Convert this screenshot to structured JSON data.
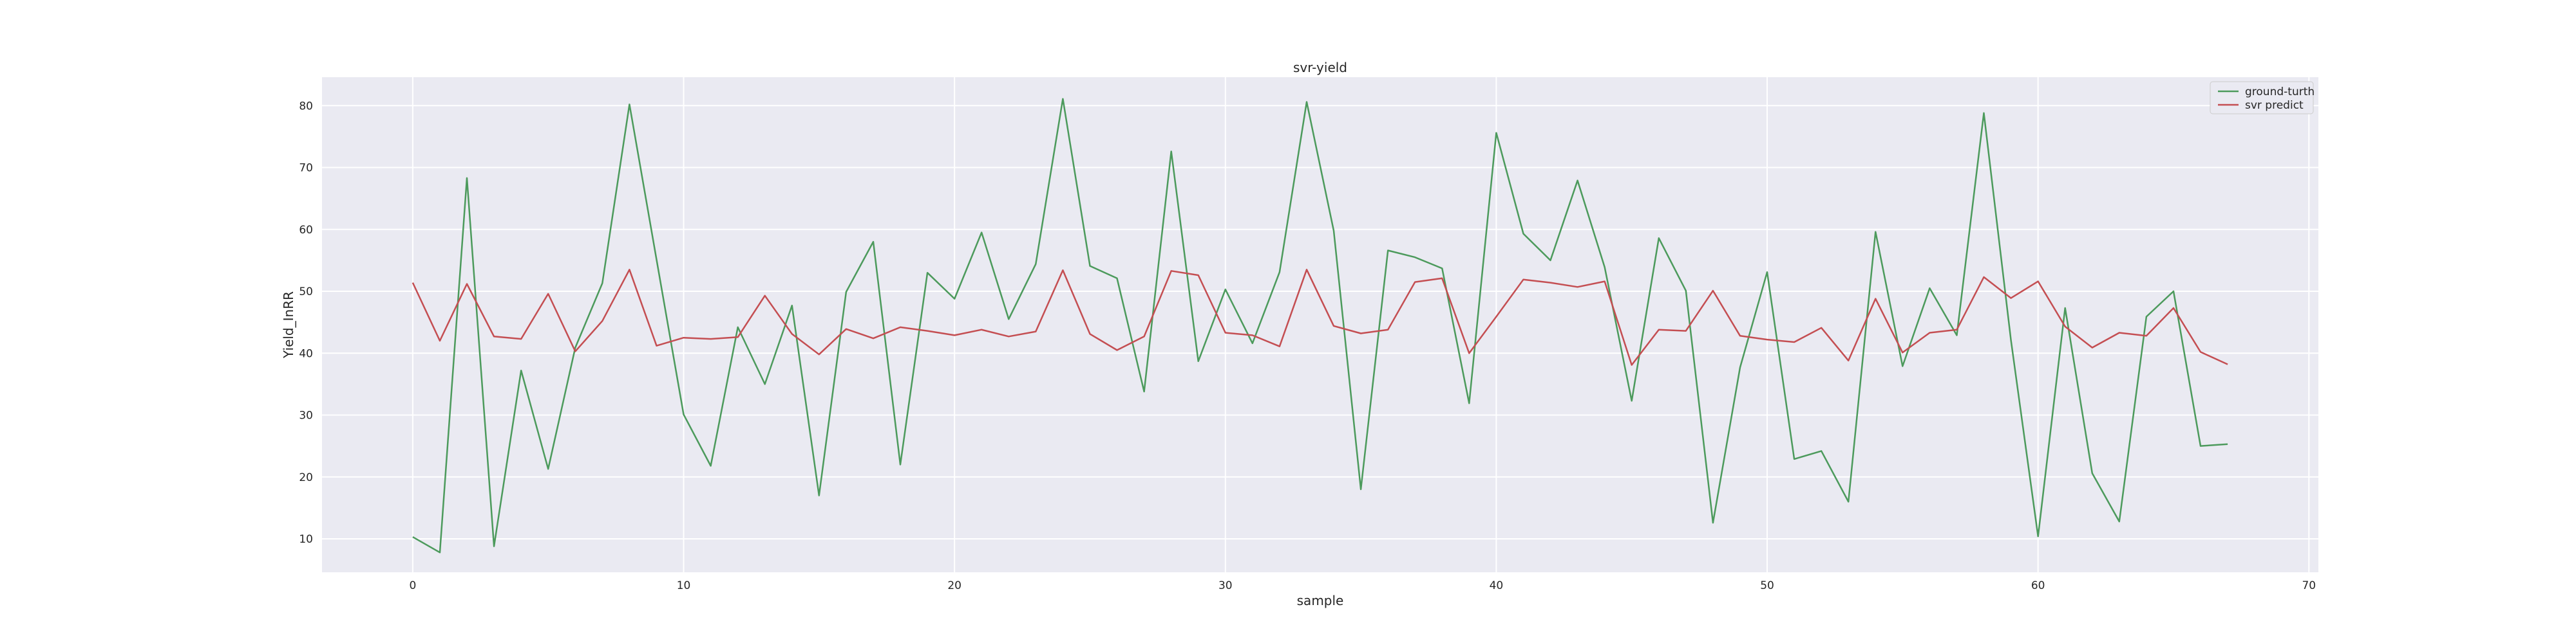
{
  "chart_data": {
    "type": "line",
    "title": "svr-yield",
    "xlabel": "sample",
    "ylabel": "Yield_InRR",
    "xlim": [
      -3.35,
      70.35
    ],
    "ylim": [
      4.6,
      84.6
    ],
    "xticks": [
      0,
      10,
      20,
      30,
      40,
      50,
      60,
      70
    ],
    "yticks": [
      10,
      20,
      30,
      40,
      50,
      60,
      70,
      80
    ],
    "grid": true,
    "legend_position": "top-right",
    "x": [
      0,
      1,
      2,
      3,
      4,
      5,
      6,
      7,
      8,
      9,
      10,
      11,
      12,
      13,
      14,
      15,
      16,
      17,
      18,
      19,
      20,
      21,
      22,
      23,
      24,
      25,
      26,
      27,
      28,
      29,
      30,
      31,
      32,
      33,
      34,
      35,
      36,
      37,
      38,
      39,
      40,
      41,
      42,
      43,
      44,
      45,
      46,
      47,
      48,
      49,
      50,
      51,
      52,
      53,
      54,
      55,
      56,
      57,
      58,
      59,
      60,
      61,
      62,
      63,
      64,
      65,
      66,
      67
    ],
    "series": [
      {
        "name": "ground-turth",
        "color": "#4c9a5c",
        "values": [
          10.3,
          7.8,
          68.3,
          8.8,
          37.2,
          21.3,
          40.9,
          51.3,
          80.2,
          55.1,
          30.1,
          21.8,
          44.2,
          35.0,
          47.7,
          17.0,
          49.9,
          58.0,
          22.0,
          53.0,
          48.8,
          59.5,
          45.5,
          54.4,
          81.1,
          54.1,
          52.1,
          33.8,
          72.6,
          38.7,
          50.3,
          41.6,
          53.1,
          80.6,
          59.8,
          18.0,
          56.6,
          55.5,
          53.7,
          31.9,
          75.6,
          59.3,
          55.0,
          67.9,
          53.9,
          32.3,
          58.6,
          50.1,
          12.6,
          37.7,
          53.1,
          22.9,
          24.2,
          16.0,
          59.6,
          37.9,
          50.5,
          42.9,
          78.8,
          42.1,
          10.4,
          47.3,
          20.6,
          12.8,
          45.9,
          50.0,
          25.0,
          25.3
        ]
      },
      {
        "name": "svr predict",
        "color": "#c44e52",
        "values": [
          51.4,
          42.0,
          51.2,
          42.7,
          42.3,
          49.6,
          40.3,
          45.2,
          53.5,
          41.2,
          42.5,
          42.3,
          42.6,
          49.3,
          43.1,
          39.8,
          43.9,
          42.4,
          44.2,
          43.6,
          42.9,
          43.8,
          42.7,
          43.5,
          53.4,
          43.1,
          40.5,
          42.7,
          53.3,
          52.6,
          43.3,
          42.9,
          41.1,
          53.5,
          44.4,
          43.2,
          43.8,
          51.5,
          52.1,
          40.0,
          45.9,
          51.9,
          51.4,
          50.7,
          51.6,
          38.1,
          43.8,
          43.6,
          50.1,
          42.8,
          42.2,
          41.8,
          44.1,
          38.8,
          48.8,
          40.1,
          43.3,
          43.8,
          52.3,
          48.9,
          51.6,
          44.3,
          40.9,
          43.3,
          42.8,
          47.3,
          40.2,
          38.2
        ]
      }
    ]
  }
}
